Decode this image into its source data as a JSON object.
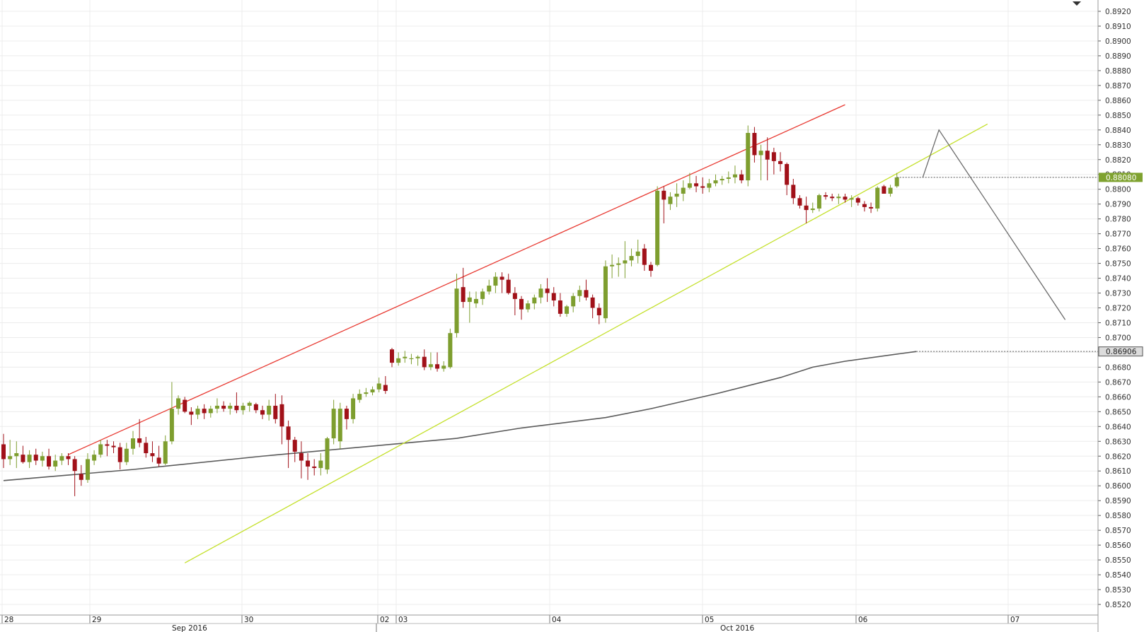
{
  "chart_data": {
    "type": "candlestick",
    "title": "",
    "xlabel": "",
    "ylabel": "",
    "ylim": [
      0.8513,
      0.8927
    ],
    "y_ticks": [
      "0.8920",
      "0.8910",
      "0.8900",
      "0.8890",
      "0.8880",
      "0.8870",
      "0.8860",
      "0.8850",
      "0.8840",
      "0.8830",
      "0.8820",
      "0.8810",
      "0.8800",
      "0.8790",
      "0.8780",
      "0.8770",
      "0.8760",
      "0.8750",
      "0.8740",
      "0.8730",
      "0.8720",
      "0.8710",
      "0.8700",
      "0.8690",
      "0.8680",
      "0.8670",
      "0.8660",
      "0.8650",
      "0.8640",
      "0.8630",
      "0.8620",
      "0.8610",
      "0.8600",
      "0.8590",
      "0.8580",
      "0.8570",
      "0.8560",
      "0.8550",
      "0.8540",
      "0.8530",
      "0.8520"
    ],
    "x_day_labels": [
      "28",
      "29",
      "30",
      "02",
      "03",
      "04",
      "05",
      "06",
      "07"
    ],
    "x_month_labels": [
      "Sep 2016",
      "Oct 2016"
    ],
    "price_tags": {
      "last_price": "0.88080",
      "moving_average": "0.86906"
    },
    "candles": [
      {
        "o": 0.8628,
        "h": 0.8635,
        "l": 0.8612,
        "c": 0.8618
      },
      {
        "o": 0.8618,
        "h": 0.8631,
        "l": 0.8614,
        "c": 0.862
      },
      {
        "o": 0.862,
        "h": 0.863,
        "l": 0.8612,
        "c": 0.8622
      },
      {
        "o": 0.8621,
        "h": 0.8627,
        "l": 0.8615,
        "c": 0.8616
      },
      {
        "o": 0.8616,
        "h": 0.8624,
        "l": 0.8612,
        "c": 0.8621
      },
      {
        "o": 0.8621,
        "h": 0.8625,
        "l": 0.8614,
        "c": 0.8617
      },
      {
        "o": 0.8617,
        "h": 0.8623,
        "l": 0.8613,
        "c": 0.862
      },
      {
        "o": 0.862,
        "h": 0.8625,
        "l": 0.8611,
        "c": 0.8613
      },
      {
        "o": 0.8613,
        "h": 0.8621,
        "l": 0.861,
        "c": 0.8617
      },
      {
        "o": 0.8617,
        "h": 0.8622,
        "l": 0.8614,
        "c": 0.862
      },
      {
        "o": 0.862,
        "h": 0.8622,
        "l": 0.8614,
        "c": 0.8618
      },
      {
        "o": 0.8618,
        "h": 0.862,
        "l": 0.8593,
        "c": 0.861
      },
      {
        "o": 0.8608,
        "h": 0.8614,
        "l": 0.86,
        "c": 0.8604
      },
      {
        "o": 0.8604,
        "h": 0.8622,
        "l": 0.8602,
        "c": 0.8618
      },
      {
        "o": 0.8617,
        "h": 0.8624,
        "l": 0.8614,
        "c": 0.8621
      },
      {
        "o": 0.8621,
        "h": 0.8631,
        "l": 0.8619,
        "c": 0.8628
      },
      {
        "o": 0.8628,
        "h": 0.8631,
        "l": 0.862,
        "c": 0.8627
      },
      {
        "o": 0.8627,
        "h": 0.863,
        "l": 0.8622,
        "c": 0.8626
      },
      {
        "o": 0.8626,
        "h": 0.8629,
        "l": 0.8611,
        "c": 0.8616
      },
      {
        "o": 0.8616,
        "h": 0.8629,
        "l": 0.8614,
        "c": 0.8625
      },
      {
        "o": 0.8625,
        "h": 0.8637,
        "l": 0.8621,
        "c": 0.8632
      },
      {
        "o": 0.8632,
        "h": 0.8645,
        "l": 0.8626,
        "c": 0.8629
      },
      {
        "o": 0.8629,
        "h": 0.8633,
        "l": 0.8619,
        "c": 0.8622
      },
      {
        "o": 0.8622,
        "h": 0.863,
        "l": 0.8616,
        "c": 0.862
      },
      {
        "o": 0.8619,
        "h": 0.8627,
        "l": 0.8613,
        "c": 0.8615
      },
      {
        "o": 0.8615,
        "h": 0.8634,
        "l": 0.8614,
        "c": 0.863
      },
      {
        "o": 0.863,
        "h": 0.867,
        "l": 0.8628,
        "c": 0.8652
      },
      {
        "o": 0.8652,
        "h": 0.8661,
        "l": 0.8648,
        "c": 0.8659
      },
      {
        "o": 0.8658,
        "h": 0.866,
        "l": 0.8649,
        "c": 0.865
      },
      {
        "o": 0.865,
        "h": 0.8653,
        "l": 0.8641,
        "c": 0.8648
      },
      {
        "o": 0.8648,
        "h": 0.8654,
        "l": 0.8645,
        "c": 0.8652
      },
      {
        "o": 0.8652,
        "h": 0.8655,
        "l": 0.8645,
        "c": 0.8649
      },
      {
        "o": 0.8649,
        "h": 0.8654,
        "l": 0.8646,
        "c": 0.8652
      },
      {
        "o": 0.8652,
        "h": 0.8659,
        "l": 0.8649,
        "c": 0.8654
      },
      {
        "o": 0.8654,
        "h": 0.8657,
        "l": 0.865,
        "c": 0.8652
      },
      {
        "o": 0.8652,
        "h": 0.8656,
        "l": 0.8648,
        "c": 0.8654
      },
      {
        "o": 0.8654,
        "h": 0.8663,
        "l": 0.8649,
        "c": 0.8651
      },
      {
        "o": 0.8651,
        "h": 0.8656,
        "l": 0.8648,
        "c": 0.8654
      },
      {
        "o": 0.8654,
        "h": 0.8657,
        "l": 0.865,
        "c": 0.8656
      },
      {
        "o": 0.8655,
        "h": 0.8656,
        "l": 0.8649,
        "c": 0.8651
      },
      {
        "o": 0.8651,
        "h": 0.8654,
        "l": 0.8645,
        "c": 0.8648
      },
      {
        "o": 0.8648,
        "h": 0.8658,
        "l": 0.8644,
        "c": 0.8654
      },
      {
        "o": 0.8654,
        "h": 0.8662,
        "l": 0.8642,
        "c": 0.8645
      },
      {
        "o": 0.8655,
        "h": 0.8661,
        "l": 0.8628,
        "c": 0.864
      },
      {
        "o": 0.864,
        "h": 0.8644,
        "l": 0.8612,
        "c": 0.8631
      },
      {
        "o": 0.8631,
        "h": 0.8633,
        "l": 0.8616,
        "c": 0.8623
      },
      {
        "o": 0.8622,
        "h": 0.863,
        "l": 0.8605,
        "c": 0.8617
      },
      {
        "o": 0.8617,
        "h": 0.8622,
        "l": 0.8604,
        "c": 0.8613
      },
      {
        "o": 0.8613,
        "h": 0.8618,
        "l": 0.8607,
        "c": 0.8612
      },
      {
        "o": 0.8612,
        "h": 0.8622,
        "l": 0.8607,
        "c": 0.8617
      },
      {
        "o": 0.8611,
        "h": 0.8633,
        "l": 0.8608,
        "c": 0.8632
      },
      {
        "o": 0.8632,
        "h": 0.8658,
        "l": 0.8628,
        "c": 0.8652
      },
      {
        "o": 0.863,
        "h": 0.8656,
        "l": 0.8625,
        "c": 0.8652
      },
      {
        "o": 0.8652,
        "h": 0.8654,
        "l": 0.8638,
        "c": 0.8645
      },
      {
        "o": 0.8645,
        "h": 0.8662,
        "l": 0.8642,
        "c": 0.8659
      },
      {
        "o": 0.8658,
        "h": 0.8665,
        "l": 0.8656,
        "c": 0.8662
      },
      {
        "o": 0.8662,
        "h": 0.8666,
        "l": 0.866,
        "c": 0.8663
      },
      {
        "o": 0.8663,
        "h": 0.8667,
        "l": 0.8661,
        "c": 0.8665
      },
      {
        "o": 0.8665,
        "h": 0.8673,
        "l": 0.8663,
        "c": 0.8669
      },
      {
        "o": 0.8668,
        "h": 0.8674,
        "l": 0.8662,
        "c": 0.8664
      },
      {
        "o": 0.8692,
        "h": 0.8693,
        "l": 0.868,
        "c": 0.8683
      },
      {
        "o": 0.8683,
        "h": 0.869,
        "l": 0.8681,
        "c": 0.8686
      },
      {
        "o": 0.8686,
        "h": 0.8691,
        "l": 0.8683,
        "c": 0.8687
      },
      {
        "o": 0.8686,
        "h": 0.8689,
        "l": 0.8682,
        "c": 0.8686
      },
      {
        "o": 0.8686,
        "h": 0.8688,
        "l": 0.8681,
        "c": 0.8687
      },
      {
        "o": 0.8687,
        "h": 0.8692,
        "l": 0.8678,
        "c": 0.868
      },
      {
        "o": 0.868,
        "h": 0.869,
        "l": 0.8678,
        "c": 0.8682
      },
      {
        "o": 0.8682,
        "h": 0.869,
        "l": 0.8677,
        "c": 0.8679
      },
      {
        "o": 0.8679,
        "h": 0.8684,
        "l": 0.8677,
        "c": 0.8681
      },
      {
        "o": 0.868,
        "h": 0.8706,
        "l": 0.8679,
        "c": 0.8703
      },
      {
        "o": 0.8703,
        "h": 0.8743,
        "l": 0.87,
        "c": 0.8733
      },
      {
        "o": 0.8734,
        "h": 0.8747,
        "l": 0.872,
        "c": 0.8724
      },
      {
        "o": 0.8724,
        "h": 0.8731,
        "l": 0.871,
        "c": 0.8727
      },
      {
        "o": 0.8723,
        "h": 0.8731,
        "l": 0.872,
        "c": 0.8726
      },
      {
        "o": 0.8726,
        "h": 0.8733,
        "l": 0.8722,
        "c": 0.8731
      },
      {
        "o": 0.8731,
        "h": 0.8739,
        "l": 0.8729,
        "c": 0.8735
      },
      {
        "o": 0.8735,
        "h": 0.8744,
        "l": 0.873,
        "c": 0.8741
      },
      {
        "o": 0.8741,
        "h": 0.8744,
        "l": 0.873,
        "c": 0.8739
      },
      {
        "o": 0.8739,
        "h": 0.8743,
        "l": 0.8729,
        "c": 0.873
      },
      {
        "o": 0.873,
        "h": 0.8734,
        "l": 0.8715,
        "c": 0.8726
      },
      {
        "o": 0.8726,
        "h": 0.8728,
        "l": 0.8712,
        "c": 0.8719
      },
      {
        "o": 0.8719,
        "h": 0.8725,
        "l": 0.8717,
        "c": 0.8723
      },
      {
        "o": 0.8723,
        "h": 0.8729,
        "l": 0.8719,
        "c": 0.8727
      },
      {
        "o": 0.8727,
        "h": 0.8736,
        "l": 0.8723,
        "c": 0.8733
      },
      {
        "o": 0.8733,
        "h": 0.874,
        "l": 0.8724,
        "c": 0.873
      },
      {
        "o": 0.873,
        "h": 0.8734,
        "l": 0.8721,
        "c": 0.8725
      },
      {
        "o": 0.8725,
        "h": 0.873,
        "l": 0.8714,
        "c": 0.8716
      },
      {
        "o": 0.8716,
        "h": 0.8722,
        "l": 0.8714,
        "c": 0.8721
      },
      {
        "o": 0.8721,
        "h": 0.873,
        "l": 0.8717,
        "c": 0.8728
      },
      {
        "o": 0.8728,
        "h": 0.8735,
        "l": 0.8724,
        "c": 0.8732
      },
      {
        "o": 0.8732,
        "h": 0.8739,
        "l": 0.8725,
        "c": 0.8727
      },
      {
        "o": 0.8727,
        "h": 0.8729,
        "l": 0.8713,
        "c": 0.872
      },
      {
        "o": 0.872,
        "h": 0.8723,
        "l": 0.8709,
        "c": 0.8715
      },
      {
        "o": 0.8713,
        "h": 0.8752,
        "l": 0.871,
        "c": 0.8748
      },
      {
        "o": 0.8748,
        "h": 0.8756,
        "l": 0.874,
        "c": 0.8749
      },
      {
        "o": 0.8749,
        "h": 0.8754,
        "l": 0.8741,
        "c": 0.875
      },
      {
        "o": 0.875,
        "h": 0.8765,
        "l": 0.874,
        "c": 0.8752
      },
      {
        "o": 0.8752,
        "h": 0.876,
        "l": 0.8748,
        "c": 0.8755
      },
      {
        "o": 0.8755,
        "h": 0.8766,
        "l": 0.875,
        "c": 0.8758
      },
      {
        "o": 0.876,
        "h": 0.8763,
        "l": 0.8745,
        "c": 0.8749
      },
      {
        "o": 0.8749,
        "h": 0.8751,
        "l": 0.8741,
        "c": 0.8745
      },
      {
        "o": 0.8749,
        "h": 0.8802,
        "l": 0.8748,
        "c": 0.8799
      },
      {
        "o": 0.8799,
        "h": 0.8802,
        "l": 0.8777,
        "c": 0.8793
      },
      {
        "o": 0.879,
        "h": 0.8798,
        "l": 0.8786,
        "c": 0.8795
      },
      {
        "o": 0.8795,
        "h": 0.8804,
        "l": 0.8788,
        "c": 0.8797
      },
      {
        "o": 0.8797,
        "h": 0.8806,
        "l": 0.8792,
        "c": 0.8801
      },
      {
        "o": 0.8801,
        "h": 0.8811,
        "l": 0.88,
        "c": 0.8804
      },
      {
        "o": 0.8804,
        "h": 0.8809,
        "l": 0.8798,
        "c": 0.8802
      },
      {
        "o": 0.8802,
        "h": 0.8808,
        "l": 0.8797,
        "c": 0.8801
      },
      {
        "o": 0.8801,
        "h": 0.8807,
        "l": 0.8798,
        "c": 0.8804
      },
      {
        "o": 0.8804,
        "h": 0.881,
        "l": 0.8802,
        "c": 0.8806
      },
      {
        "o": 0.8806,
        "h": 0.8809,
        "l": 0.8803,
        "c": 0.8807
      },
      {
        "o": 0.8807,
        "h": 0.8812,
        "l": 0.8804,
        "c": 0.8808
      },
      {
        "o": 0.8808,
        "h": 0.8816,
        "l": 0.8804,
        "c": 0.881
      },
      {
        "o": 0.881,
        "h": 0.8813,
        "l": 0.8804,
        "c": 0.8806
      },
      {
        "o": 0.8806,
        "h": 0.8843,
        "l": 0.8802,
        "c": 0.8838
      },
      {
        "o": 0.8838,
        "h": 0.8842,
        "l": 0.8818,
        "c": 0.8823
      },
      {
        "o": 0.8823,
        "h": 0.883,
        "l": 0.8806,
        "c": 0.8826
      },
      {
        "o": 0.8826,
        "h": 0.8835,
        "l": 0.8806,
        "c": 0.882
      },
      {
        "o": 0.8825,
        "h": 0.8828,
        "l": 0.881,
        "c": 0.8819
      },
      {
        "o": 0.8819,
        "h": 0.8825,
        "l": 0.8812,
        "c": 0.8817
      },
      {
        "o": 0.8817,
        "h": 0.8818,
        "l": 0.8796,
        "c": 0.8803
      },
      {
        "o": 0.8803,
        "h": 0.8807,
        "l": 0.879,
        "c": 0.8794
      },
      {
        "o": 0.8794,
        "h": 0.8796,
        "l": 0.8787,
        "c": 0.8789
      },
      {
        "o": 0.8789,
        "h": 0.8795,
        "l": 0.8777,
        "c": 0.8786
      },
      {
        "o": 0.8786,
        "h": 0.8791,
        "l": 0.8784,
        "c": 0.8787
      },
      {
        "o": 0.8787,
        "h": 0.8797,
        "l": 0.8785,
        "c": 0.8796
      },
      {
        "o": 0.8796,
        "h": 0.8798,
        "l": 0.8793,
        "c": 0.8795
      },
      {
        "o": 0.8795,
        "h": 0.8797,
        "l": 0.8792,
        "c": 0.8794
      },
      {
        "o": 0.8794,
        "h": 0.8797,
        "l": 0.879,
        "c": 0.8795
      },
      {
        "o": 0.8795,
        "h": 0.8797,
        "l": 0.8791,
        "c": 0.8793
      },
      {
        "o": 0.8793,
        "h": 0.8796,
        "l": 0.8788,
        "c": 0.8794
      },
      {
        "o": 0.8794,
        "h": 0.8795,
        "l": 0.8789,
        "c": 0.8791
      },
      {
        "o": 0.879,
        "h": 0.8792,
        "l": 0.8785,
        "c": 0.8788
      },
      {
        "o": 0.8788,
        "h": 0.8791,
        "l": 0.8784,
        "c": 0.8787
      },
      {
        "o": 0.8787,
        "h": 0.8802,
        "l": 0.8785,
        "c": 0.8801
      },
      {
        "o": 0.8802,
        "h": 0.8803,
        "l": 0.8797,
        "c": 0.8797
      },
      {
        "o": 0.8797,
        "h": 0.8803,
        "l": 0.8795,
        "c": 0.8801
      },
      {
        "o": 0.8802,
        "h": 0.8811,
        "l": 0.8801,
        "c": 0.8808
      }
    ],
    "moving_average": [
      {
        "i": 0,
        "v": 0.86035
      },
      {
        "i": 20,
        "v": 0.8611
      },
      {
        "i": 40,
        "v": 0.862
      },
      {
        "i": 60,
        "v": 0.8628
      },
      {
        "i": 70,
        "v": 0.8632
      },
      {
        "i": 80,
        "v": 0.8639
      },
      {
        "i": 93,
        "v": 0.8646
      },
      {
        "i": 100,
        "v": 0.8652
      },
      {
        "i": 110,
        "v": 0.8662
      },
      {
        "i": 120,
        "v": 0.8673
      },
      {
        "i": 125,
        "v": 0.868
      },
      {
        "i": 130,
        "v": 0.8684
      },
      {
        "i": 141,
        "v": 0.86906
      }
    ],
    "trendlines": [
      {
        "name": "upper channel",
        "color": "#e83a32",
        "p1": {
          "i": 10,
          "v": 0.8621
        },
        "p2": {
          "i": 130,
          "v": 0.8857
        }
      },
      {
        "name": "lower channel",
        "color": "#c4e02a",
        "p1": {
          "i": 28,
          "v": 0.8548
        },
        "p2": {
          "i": 152,
          "v": 0.8844
        }
      }
    ],
    "projection": [
      {
        "i": 142,
        "v": 0.8808
      },
      {
        "i": 144.5,
        "v": 0.884
      },
      {
        "i": 164,
        "v": 0.8712
      }
    ],
    "colors": {
      "bull": "#7e9e2f",
      "bear": "#a11119",
      "ma": "#5a5a5a",
      "projection": "#6a6a6a",
      "last_tag_bg": "#7fa230",
      "ma_tag_bg": "#dcdcdc",
      "grid": "#ececec",
      "axis_border": "#9a9a9a"
    },
    "grid": true,
    "legend": "none"
  }
}
